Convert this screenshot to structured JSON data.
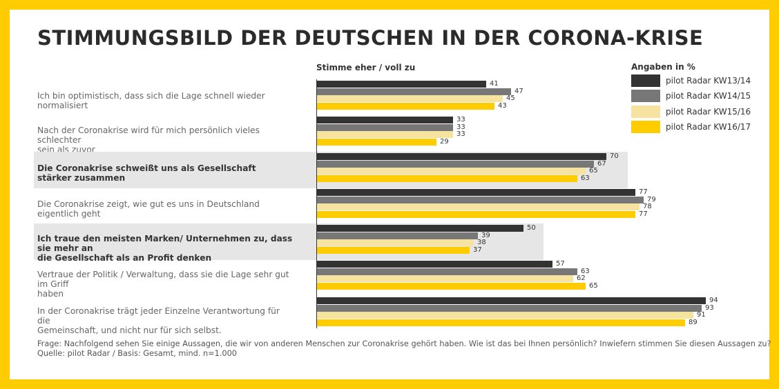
{
  "title": "STIMMUNGSBILD DER DEUTSCHEN IN DER CORONA-KRISE",
  "column_header": "Stimme eher / voll zu",
  "legend": {
    "title": "Angaben in %",
    "items": [
      {
        "label": "pilot Radar KW13/14",
        "color": "#333333"
      },
      {
        "label": "pilot Radar KW14/15",
        "color": "#777777"
      },
      {
        "label": "pilot Radar KW15/16",
        "color": "#F7E3A0"
      },
      {
        "label": "pilot Radar KW16/17",
        "color": "#FFCC00"
      }
    ]
  },
  "footnotes": [
    "Frage: Nachfolgend sehen Sie einige Aussagen, die wir von anderen Menschen zur Coronakrise gehört haben. Wie ist das bei Ihnen persönlich? Inwiefern stimmen Sie diesen Aussagen zu?",
    "Quelle: pilot Radar / Basis: Gesamt, mind. n=1.000"
  ],
  "chart_data": {
    "type": "bar",
    "orientation": "horizontal",
    "title": "STIMMUNGSBILD DER DEUTSCHEN IN DER CORONA-KRISE",
    "categories": [
      {
        "line1": "Ich bin optimistisch, dass sich die Lage schnell wieder normalisiert",
        "line2": "",
        "highlighted": false
      },
      {
        "line1": "Nach der Coronakrise wird für mich persönlich vieles schlechter",
        "line2": "sein als zuvor",
        "highlighted": false
      },
      {
        "line1": "Die Coronakrise schweißt uns als Gesellschaft stärker zusammen",
        "line2": "",
        "highlighted": true
      },
      {
        "line1": "Die Coronakrise zeigt, wie gut es uns in Deutschland eigentlich geht",
        "line2": "",
        "highlighted": false
      },
      {
        "line1": "Ich traue den meisten Marken/ Unternehmen zu, dass sie mehr an",
        "line2": "die Gesellschaft als an Profit denken",
        "highlighted": true
      },
      {
        "line1": "Vertraue der Politik / Verwaltung, dass sie die Lage sehr gut im Griff",
        "line2": "haben",
        "highlighted": false
      },
      {
        "line1": "In der Coronakrise trägt jeder Einzelne Verantwortung für die",
        "line2": "Gemeinschaft, und nicht nur für sich selbst.",
        "highlighted": false
      }
    ],
    "series": [
      {
        "name": "pilot Radar KW13/14",
        "color": "#333333",
        "values": [
          41,
          33,
          70,
          77,
          50,
          57,
          94
        ]
      },
      {
        "name": "pilot Radar KW14/15",
        "color": "#777777",
        "values": [
          47,
          33,
          67,
          79,
          39,
          63,
          93
        ]
      },
      {
        "name": "pilot Radar KW15/16",
        "color": "#F7E3A0",
        "values": [
          45,
          33,
          65,
          78,
          38,
          62,
          91
        ]
      },
      {
        "name": "pilot Radar KW16/17",
        "color": "#FFCC00",
        "values": [
          43,
          29,
          63,
          77,
          37,
          65,
          89
        ]
      }
    ],
    "xlim": [
      0,
      100
    ],
    "unit": "%",
    "legend_position": "top-right",
    "grid": false
  }
}
